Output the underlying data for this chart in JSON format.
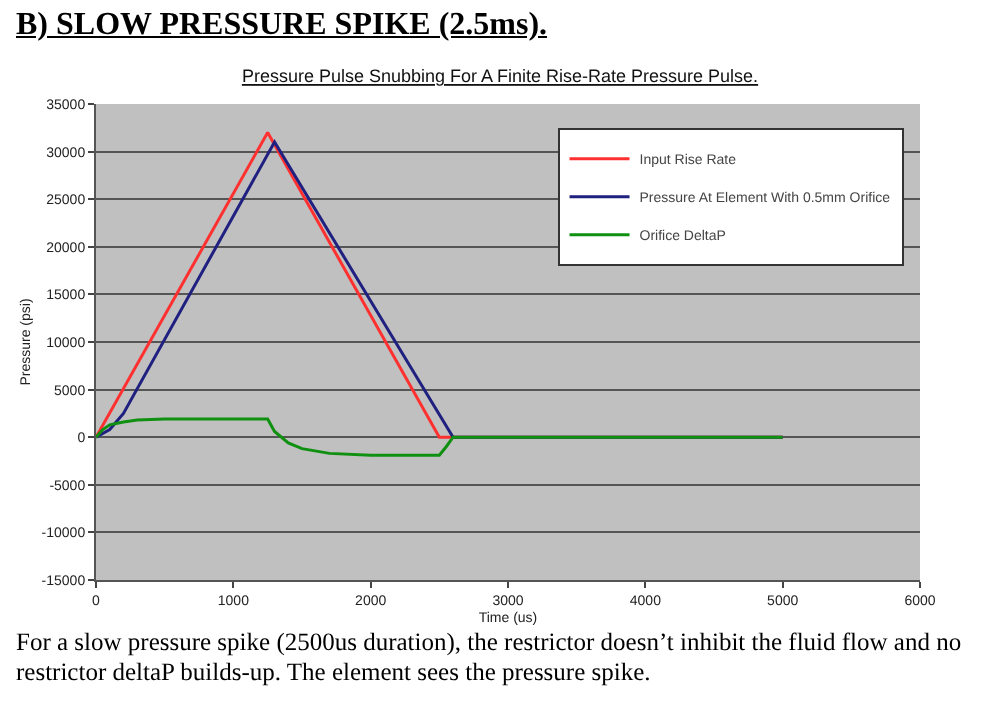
{
  "chart_data": {
    "type": "line",
    "title": "B) SLOW PRESSURE SPIKE (2.5ms).",
    "subtitle": "Pressure Pulse Snubbing For A Finite Rise-Rate Pressure Pulse.",
    "xlabel": "Time (us)",
    "ylabel": "Pressure (psi)",
    "annotations": [
      "For a slow pressure spike (2500us duration), the restrictor doesn’t inhibit the fluid flow and no restrictor deltaP builds-up. The element sees the pressure spike."
    ],
    "xlim": [
      0,
      6000
    ],
    "xticks": [
      0,
      1000,
      2000,
      3000,
      4000,
      5000,
      6000
    ],
    "ylim": [
      -15000,
      35000
    ],
    "yticks": [
      -15000,
      -10000,
      -5000,
      0,
      5000,
      10000,
      15000,
      20000,
      25000,
      30000,
      35000
    ],
    "grid": "y",
    "legend": "top right",
    "marker": "none",
    "line_style": "solid",
    "series": [
      {
        "name": "Input Rise Rate",
        "color": "#ff3030",
        "x": [
          0,
          1250,
          2500,
          5000
        ],
        "values": [
          0,
          32000,
          0,
          0
        ]
      },
      {
        "name": "Pressure At Element With 0.5mm Orifice",
        "color": "#202080",
        "x": [
          0,
          100,
          200,
          1300,
          2600,
          5000
        ],
        "values": [
          0,
          800,
          2500,
          31000,
          0,
          0
        ]
      },
      {
        "name": "Orifice DeltaP",
        "color": "#109010",
        "x": [
          0,
          50,
          100,
          200,
          300,
          500,
          800,
          1250,
          1300,
          1400,
          1500,
          1700,
          2000,
          2500,
          2550,
          2600,
          5000
        ],
        "values": [
          0,
          800,
          1300,
          1600,
          1800,
          1900,
          1900,
          1900,
          600,
          -600,
          -1200,
          -1700,
          -1900,
          -1900,
          -1000,
          0,
          0
        ]
      }
    ]
  }
}
